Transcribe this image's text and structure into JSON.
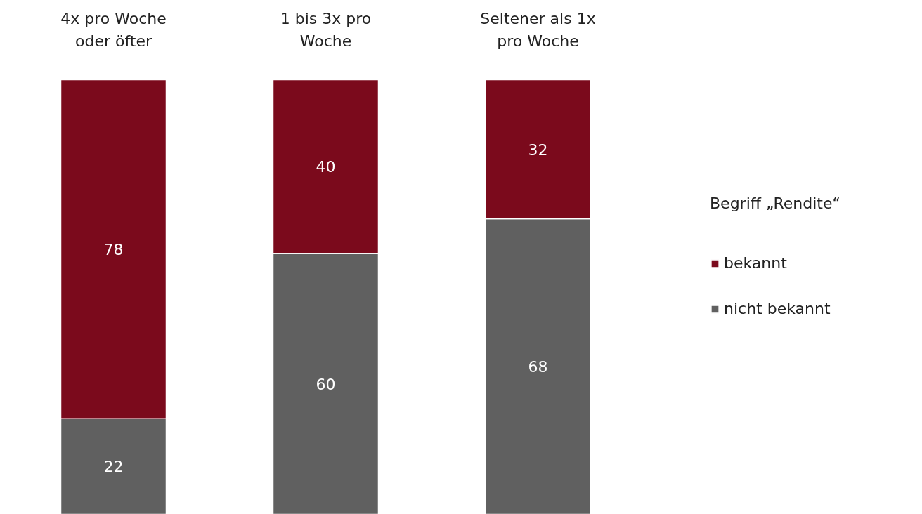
{
  "chart_data": {
    "type": "bar",
    "stacked": true,
    "data_labels": true,
    "legend": "right",
    "legend_title": "Begriff „Rendite“",
    "categories": [
      "4x pro Woche oder öfter",
      "1 bis 3x pro Woche",
      "Seltener als 1x pro Woche"
    ],
    "series": [
      {
        "name": "nicht bekannt",
        "color": "#606060",
        "values": [
          22,
          60,
          68
        ]
      },
      {
        "name": "bekannt",
        "color": "#7b0a1c",
        "values": [
          78,
          40,
          32
        ]
      }
    ]
  }
}
